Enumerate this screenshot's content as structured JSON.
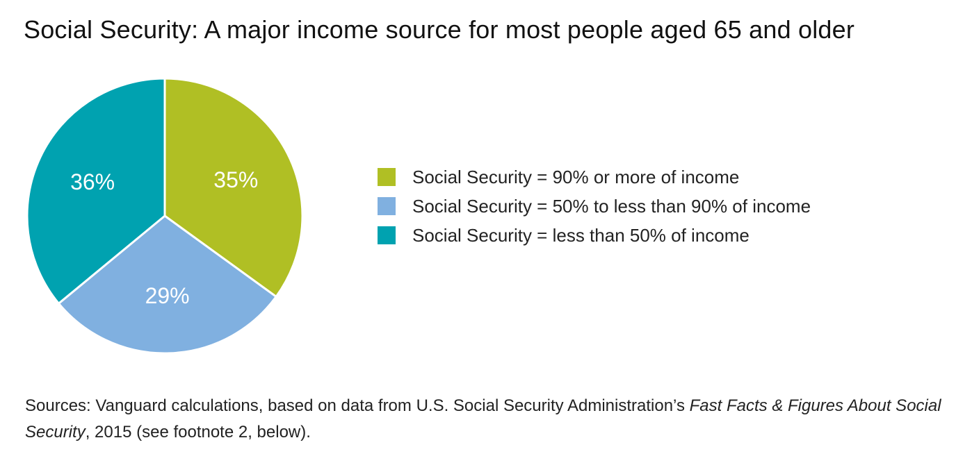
{
  "title": "Social Security: A major income source for most people aged 65 and older",
  "chart_data": {
    "type": "pie",
    "title": "Social Security: A major income source for most people aged 65 and older",
    "slices": [
      {
        "label": "Social Security = 90% or more of income",
        "value": 35,
        "value_label": "35%",
        "color": "#b0bf24"
      },
      {
        "label": "Social Security = 50% to less than 90% of income",
        "value": 29,
        "value_label": "29%",
        "color": "#80b0e0"
      },
      {
        "label": "Social Security = less than 50% of income",
        "value": 36,
        "value_label": "36%",
        "color": "#00a2b0"
      }
    ],
    "legend_position": "right",
    "start_angle": "12 o'clock",
    "direction": "clockwise"
  },
  "source": {
    "label": "Sources:",
    "text_1": " Vanguard calculations, based on data from U.S. Social Security Administration’s ",
    "italic_title": "Fast Facts & Figures About Social Security",
    "text_2": ", 2015 (see footnote 2, below)."
  }
}
